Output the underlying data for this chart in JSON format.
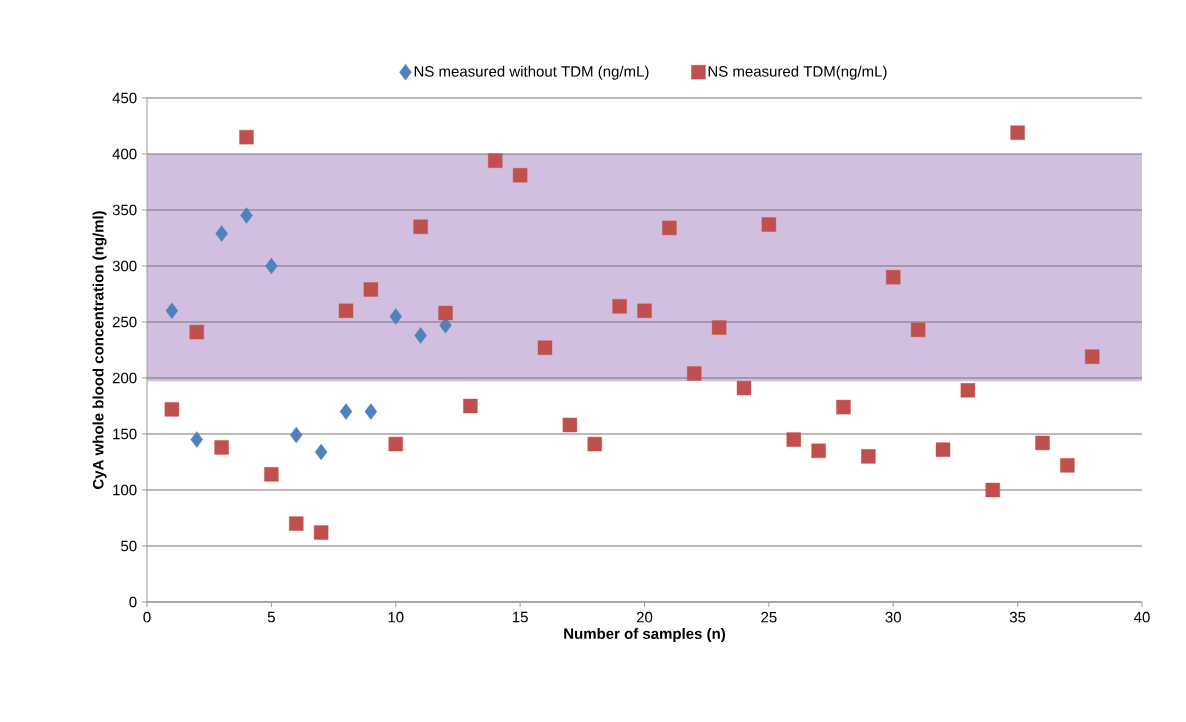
{
  "chart_data": {
    "type": "scatter",
    "xlabel": "Number of samples (n)",
    "ylabel": "CyA whole blood concentration (ng/ml)",
    "xlim": [
      0,
      40
    ],
    "xticks": [
      0,
      5,
      10,
      15,
      20,
      25,
      30,
      35,
      40
    ],
    "ylim": [
      0,
      450
    ],
    "yticks": [
      0,
      50,
      100,
      150,
      200,
      250,
      300,
      350,
      400,
      450
    ],
    "grid": "y",
    "legend": "top",
    "bands": [
      {
        "axis": "y",
        "from": 197,
        "to": 400,
        "color": "#d2bfe0"
      }
    ],
    "series": [
      {
        "name": "NS measured without TDM (ng/mL)",
        "color": "#4f81bd",
        "marker": "diamond",
        "x": [
          1,
          2,
          3,
          4,
          5,
          6,
          7,
          8,
          9,
          10,
          11,
          12
        ],
        "values": [
          260,
          145,
          329,
          345,
          300,
          149,
          134,
          170,
          170,
          255,
          238,
          247
        ]
      },
      {
        "name": "NS measured TDM(ng/mL)",
        "color": "#c0504d",
        "marker": "square",
        "x": [
          1,
          2,
          3,
          4,
          5,
          6,
          7,
          8,
          9,
          10,
          11,
          12,
          13,
          14,
          15,
          16,
          17,
          18,
          19,
          20,
          21,
          22,
          23,
          24,
          25,
          26,
          27,
          28,
          29,
          30,
          31,
          32,
          33,
          34,
          35,
          36,
          37,
          38
        ],
        "values": [
          172,
          241,
          138,
          415,
          114,
          70,
          62,
          260,
          279,
          141,
          335,
          258,
          175,
          394,
          381,
          227,
          158,
          141,
          264,
          260,
          334,
          204,
          245,
          191,
          337,
          145,
          135,
          174,
          130,
          290,
          243,
          136,
          189,
          100,
          419,
          142,
          122,
          219
        ]
      }
    ]
  }
}
